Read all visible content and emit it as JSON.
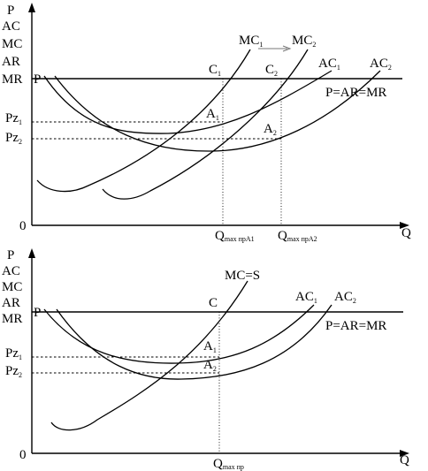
{
  "top": {
    "axis": {
      "y_lines": [
        "P",
        "AC",
        "MC",
        "AR",
        "MR"
      ],
      "x": "Q",
      "origin": "0"
    },
    "price_left": "P",
    "line_label": "P=AR=MR",
    "curves": {
      "mc1": {
        "base": "MC",
        "sub": "1"
      },
      "mc2": {
        "base": "MC",
        "sub": "2"
      },
      "ac1": {
        "base": "AC",
        "sub": "1"
      },
      "ac2": {
        "base": "AC",
        "sub": "2"
      }
    },
    "points": {
      "c1": {
        "base": "C",
        "sub": "1"
      },
      "c2": {
        "base": "C",
        "sub": "2"
      },
      "a1": {
        "base": "A",
        "sub": "1"
      },
      "a2": {
        "base": "A",
        "sub": "2"
      }
    },
    "pz1": {
      "base": "Pz",
      "sub": "1"
    },
    "pz2": {
      "base": "Pz",
      "sub": "2"
    },
    "q1": {
      "base": "Q",
      "sub": "max прА1"
    },
    "q2": {
      "base": "Q",
      "sub": "max прА2"
    }
  },
  "bottom": {
    "axis": {
      "y_lines": [
        "P",
        "AC",
        "MC",
        "AR",
        "MR"
      ],
      "x": "Q",
      "origin": "0"
    },
    "price_left": "P",
    "line_label": "P=AR=MR",
    "mc_label": "MC=S",
    "curves": {
      "ac1": {
        "base": "AC",
        "sub": "1"
      },
      "ac2": {
        "base": "AC",
        "sub": "2"
      }
    },
    "points": {
      "c": "C",
      "a1": {
        "base": "A",
        "sub": "1"
      },
      "a2": {
        "base": "A",
        "sub": "2"
      }
    },
    "pz1": {
      "base": "Pz",
      "sub": "1"
    },
    "pz2": {
      "base": "Pz",
      "sub": "2"
    },
    "q": {
      "base": "Q",
      "sub": "max пр"
    }
  }
}
